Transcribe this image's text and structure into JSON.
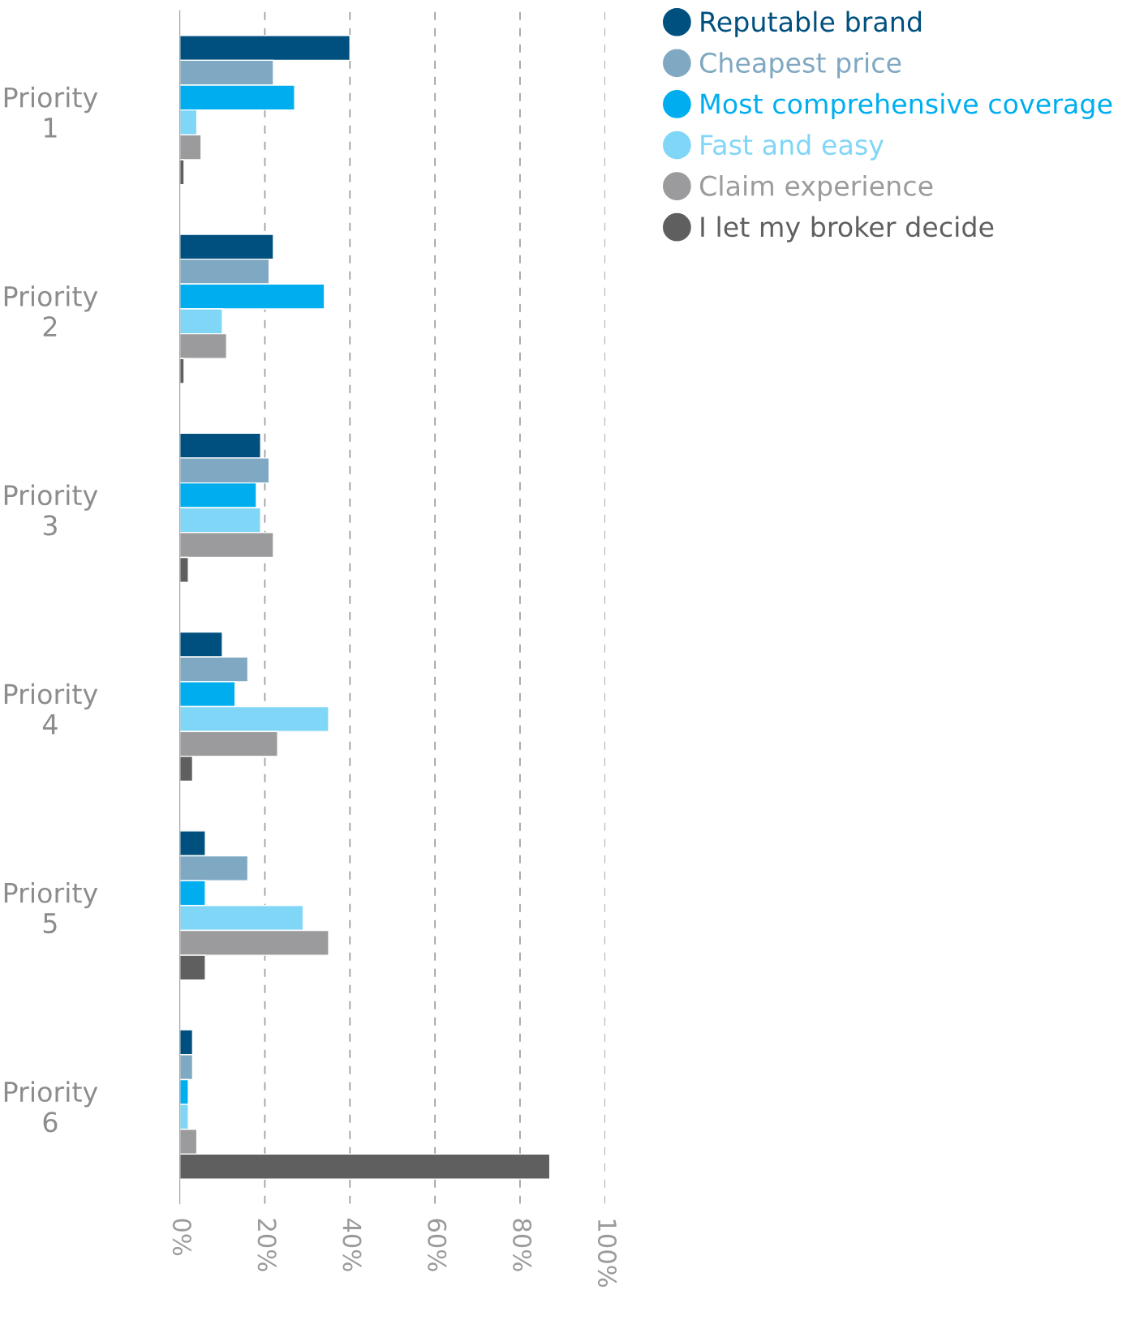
{
  "chart_data": {
    "type": "bar",
    "orientation": "horizontal",
    "categories": [
      "Priority\n1",
      "Priority\n2",
      "Priority\n3",
      "Priority\n4",
      "Priority\n5",
      "Priority\n6"
    ],
    "series": [
      {
        "name": "Reputable brand",
        "color": "#00507f",
        "values": [
          40,
          22,
          19,
          10,
          6,
          3
        ]
      },
      {
        "name": "Cheapest price",
        "color": "#7fa8c2",
        "values": [
          22,
          21,
          21,
          16,
          16,
          3
        ]
      },
      {
        "name": "Most comprehensive coverage",
        "color": "#00aeef",
        "values": [
          27,
          34,
          18,
          13,
          6,
          2
        ]
      },
      {
        "name": "Fast and easy",
        "color": "#7fd6f7",
        "values": [
          4,
          10,
          19,
          35,
          29,
          2
        ]
      },
      {
        "name": "Claim experience",
        "color": "#9b9a9c",
        "values": [
          5,
          11,
          22,
          23,
          35,
          4
        ]
      },
      {
        "name": "I let my broker decide",
        "color": "#5f5f5f",
        "values": [
          1,
          1,
          2,
          3,
          6,
          87
        ]
      }
    ],
    "xlim": [
      0,
      100
    ],
    "xticks": [
      {
        "value": 0,
        "label": "0%"
      },
      {
        "value": 20,
        "label": "20%"
      },
      {
        "value": 40,
        "label": "40%"
      },
      {
        "value": 60,
        "label": "60%"
      },
      {
        "value": 80,
        "label": "80%"
      },
      {
        "value": 100,
        "label": "100%"
      }
    ],
    "grid": "x",
    "legend": "top right",
    "marker": "circle"
  }
}
